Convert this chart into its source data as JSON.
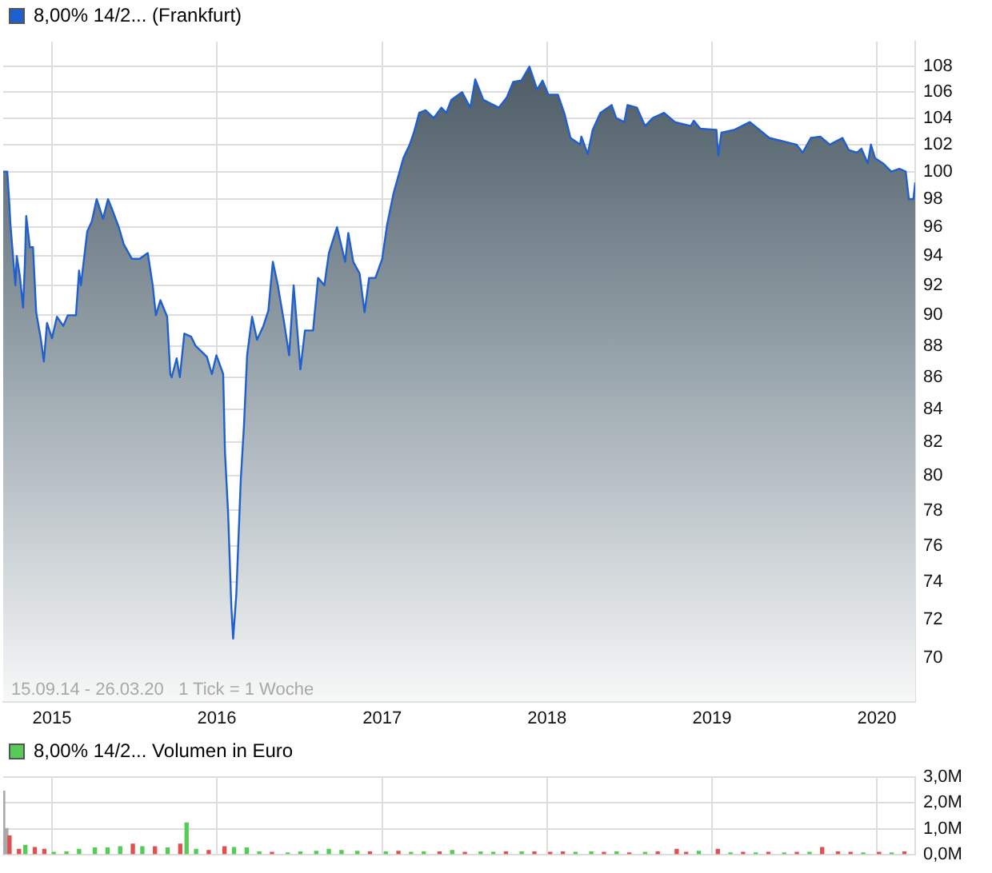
{
  "chart_data": [
    {
      "type": "area",
      "log": true,
      "grid": true,
      "legend": "top left",
      "xlim": [
        "2014-09-15",
        "2020-03-26"
      ],
      "xticks": [
        "2015",
        "2016",
        "2017",
        "2018",
        "2019",
        "2020"
      ],
      "ylim": [
        67.8,
        110
      ],
      "yticks": [
        70,
        72,
        74,
        76,
        78,
        80,
        82,
        84,
        86,
        88,
        90,
        92,
        94,
        96,
        98,
        100,
        102,
        104,
        106,
        108
      ],
      "annotations": [
        "15.09.14 - 26.03.20   1 Tick = 1 Woche"
      ],
      "x": [
        "2014-09-15",
        "2014-09-24",
        "2014-09-28",
        "2014-10-01",
        "2014-10-12",
        "2014-10-15",
        "2014-10-22",
        "2014-10-29",
        "2014-11-02",
        "2014-11-05",
        "2014-11-13",
        "2014-11-20",
        "2014-11-27",
        "2014-12-07",
        "2014-12-14",
        "2014-12-21",
        "2015-01-01",
        "2015-01-12",
        "2015-01-26",
        "2015-02-05",
        "2015-02-23",
        "2015-03-02",
        "2015-03-06",
        "2015-03-20",
        "2015-03-30",
        "2015-04-10",
        "2015-04-24",
        "2015-05-05",
        "2015-05-15",
        "2015-05-29",
        "2015-06-09",
        "2015-06-27",
        "2015-07-14",
        "2015-08-01",
        "2015-08-12",
        "2015-08-19",
        "2015-08-29",
        "2015-09-13",
        "2015-09-20",
        "2015-09-23",
        "2015-10-04",
        "2015-10-11",
        "2015-10-21",
        "2015-11-05",
        "2015-11-15",
        "2015-11-26",
        "2015-12-10",
        "2015-12-21",
        "2015-12-31",
        "2016-01-15",
        "2016-01-19",
        "2016-01-26",
        "2016-02-02",
        "2016-02-06",
        "2016-02-13",
        "2016-02-20",
        "2016-02-23",
        "2016-03-01",
        "2016-03-08",
        "2016-03-19",
        "2016-03-30",
        "2016-04-13",
        "2016-04-24",
        "2016-05-04",
        "2016-05-15",
        "2016-05-29",
        "2016-06-09",
        "2016-06-19",
        "2016-07-04",
        "2016-07-14",
        "2016-08-01",
        "2016-08-12",
        "2016-08-26",
        "2016-09-05",
        "2016-09-23",
        "2016-10-11",
        "2016-10-18",
        "2016-10-29",
        "2016-11-12",
        "2016-11-23",
        "2016-12-03",
        "2016-12-17",
        "2017-01-01",
        "2017-01-12",
        "2017-01-26",
        "2017-02-06",
        "2017-02-17",
        "2017-03-03",
        "2017-03-13",
        "2017-03-24",
        "2017-04-07",
        "2017-04-25",
        "2017-05-12",
        "2017-05-23",
        "2017-06-03",
        "2017-06-27",
        "2017-07-15",
        "2017-07-26",
        "2017-08-13",
        "2017-09-16",
        "2017-10-04",
        "2017-10-18",
        "2017-11-05",
        "2017-11-23",
        "2017-12-10",
        "2017-12-22",
        "2018-01-04",
        "2018-01-25",
        "2018-02-08",
        "2018-02-22",
        "2018-03-15",
        "2018-03-18",
        "2018-04-01",
        "2018-04-12",
        "2018-04-29",
        "2018-05-24",
        "2018-06-03",
        "2018-06-21",
        "2018-06-28",
        "2018-07-19",
        "2018-08-06",
        "2018-08-23",
        "2018-09-17",
        "2018-10-11",
        "2018-11-15",
        "2018-11-22",
        "2018-12-06",
        "2019-01-11",
        "2019-01-15",
        "2019-01-22",
        "2019-02-19",
        "2019-03-26",
        "2019-04-13",
        "2019-05-08",
        "2019-07-07",
        "2019-07-21",
        "2019-08-08",
        "2019-08-29",
        "2019-09-19",
        "2019-10-17",
        "2019-10-31",
        "2019-11-18",
        "2019-11-28",
        "2019-12-12",
        "2019-12-19",
        "2019-12-28",
        "2020-01-15",
        "2020-02-02",
        "2020-02-20",
        "2020-03-05",
        "2020-03-12",
        "2020-03-22",
        "2020-03-26"
      ],
      "series": [
        {
          "name": "8,00% 14/2... (Frankfurt)",
          "color": "#1f5fcf",
          "values": [
            100,
            100,
            98,
            96.2,
            92,
            94,
            92.6,
            90.5,
            93.5,
            96.8,
            94.6,
            94.6,
            90.2,
            88.5,
            87,
            89.5,
            88.5,
            89.9,
            89.3,
            90,
            90,
            93,
            92,
            95.7,
            96.4,
            98,
            96.6,
            98,
            97.2,
            96,
            94.8,
            93.8,
            93.8,
            94.2,
            92,
            90,
            91,
            89.9,
            86.2,
            86,
            87.2,
            86,
            88.8,
            88.6,
            88,
            87.7,
            87.3,
            86.2,
            87.4,
            86.2,
            81.4,
            77.8,
            72.7,
            71,
            73.3,
            77.8,
            79.8,
            83,
            87.4,
            89.9,
            88.4,
            89.3,
            90.3,
            93.6,
            92,
            89.5,
            87.4,
            92,
            86.5,
            89,
            89,
            92.5,
            92,
            94.2,
            96,
            93.6,
            95.6,
            93.6,
            92.8,
            90.2,
            92.5,
            92.5,
            93.8,
            96.2,
            98.4,
            99.7,
            101,
            102,
            103,
            104.4,
            104.6,
            104,
            104.8,
            104.4,
            105.4,
            106,
            104.8,
            107,
            105.4,
            104.8,
            105.6,
            106.8,
            106.9,
            108,
            106.2,
            106.9,
            105.8,
            105.8,
            104.4,
            102.5,
            102,
            102.6,
            101.3,
            103.1,
            104.4,
            105,
            104,
            103.7,
            105,
            104.8,
            103.4,
            104,
            104.4,
            103.7,
            103.4,
            103.8,
            103.2,
            103.1,
            101.2,
            102.9,
            103.1,
            103.7,
            103.2,
            102.5,
            102,
            101.4,
            102.5,
            102.6,
            102,
            102.5,
            101.6,
            101.4,
            101.7,
            100.6,
            102,
            101,
            100.6,
            100,
            100.2,
            100,
            98,
            98,
            99.2
          ]
        }
      ]
    },
    {
      "type": "bar",
      "grid": true,
      "legend": "top left",
      "tick_labels": "y",
      "xlim": [
        "2014-09-15",
        "2020-03-26"
      ],
      "xticks": [
        {
          "value": "2015",
          "label": null
        },
        {
          "value": "2016",
          "label": null
        },
        {
          "value": "2017",
          "label": null
        },
        {
          "value": "2018",
          "label": null
        },
        {
          "value": "2019",
          "label": null
        },
        {
          "value": "2020",
          "label": null
        }
      ],
      "ylim": [
        0,
        3
      ],
      "yticks": [
        {
          "value": 0,
          "label": "0,0M"
        },
        {
          "value": 1,
          "label": "1,0M"
        },
        {
          "value": 2,
          "label": "2,0M"
        },
        {
          "value": 3,
          "label": "3,0M"
        }
      ],
      "x": [
        "2014-09-15",
        "2014-09-22",
        "2014-09-29",
        "2014-10-20",
        "2014-11-03",
        "2014-11-24",
        "2014-12-15",
        "2015-01-05",
        "2015-02-02",
        "2015-03-02",
        "2015-04-06",
        "2015-05-04",
        "2015-06-01",
        "2015-06-29",
        "2015-07-20",
        "2015-08-17",
        "2015-09-14",
        "2015-10-12",
        "2015-10-26",
        "2015-11-16",
        "2015-12-14",
        "2016-01-18",
        "2016-02-08",
        "2016-03-07",
        "2016-04-04",
        "2016-05-02",
        "2016-06-06",
        "2016-07-04",
        "2016-08-08",
        "2016-09-05",
        "2016-10-03",
        "2016-11-07",
        "2016-12-05",
        "2017-01-09",
        "2017-02-06",
        "2017-03-06",
        "2017-04-03",
        "2017-05-08",
        "2017-06-05",
        "2017-07-03",
        "2017-08-07",
        "2017-09-04",
        "2017-10-02",
        "2017-11-06",
        "2017-12-04",
        "2018-01-08",
        "2018-02-05",
        "2018-03-05",
        "2018-04-09",
        "2018-05-07",
        "2018-06-04",
        "2018-07-02",
        "2018-08-06",
        "2018-09-03",
        "2018-10-15",
        "2018-11-05",
        "2018-12-03",
        "2019-01-14",
        "2019-02-11",
        "2019-03-11",
        "2019-04-08",
        "2019-05-06",
        "2019-06-10",
        "2019-07-08",
        "2019-08-05",
        "2019-09-02",
        "2019-10-07",
        "2019-11-04",
        "2019-12-02",
        "2020-01-06",
        "2020-02-03",
        "2020-03-02"
      ],
      "series": [
        {
          "name": "8,00% 14/2... Volumen in Euro",
          "color": "#55cc55",
          "values": [
            2.45,
            1.0,
            0.72,
            0.2,
            0.35,
            0.27,
            0.2,
            0.08,
            0.1,
            0.2,
            0.25,
            0.25,
            0.3,
            0.4,
            0.3,
            0.3,
            0.25,
            0.4,
            1.22,
            0.2,
            0.15,
            0.3,
            0.27,
            0.25,
            0.1,
            0.08,
            0.06,
            0.1,
            0.12,
            0.2,
            0.15,
            0.12,
            0.1,
            0.1,
            0.12,
            0.08,
            0.1,
            0.1,
            0.15,
            0.08,
            0.1,
            0.08,
            0.1,
            0.1,
            0.1,
            0.08,
            0.1,
            0.08,
            0.1,
            0.08,
            0.1,
            0.06,
            0.08,
            0.1,
            0.2,
            0.08,
            0.12,
            0.2,
            0.06,
            0.08,
            0.06,
            0.08,
            0.06,
            0.08,
            0.08,
            0.27,
            0.1,
            0.08,
            0.06,
            0.08,
            0.06,
            0.1
          ],
          "colors": [
            "#aaaaaa",
            "#aaaaaa",
            "#e05050",
            "#e05050",
            "#55cc55",
            "#e05050",
            "#e05050",
            "#55cc55",
            "#55cc55",
            "#55cc55",
            "#55cc55",
            "#55cc55",
            "#55cc55",
            "#e05050",
            "#55cc55",
            "#e05050",
            "#55cc55",
            "#e05050",
            "#55cc55",
            "#55cc55",
            "#e05050",
            "#e05050",
            "#55cc55",
            "#55cc55",
            "#55cc55",
            "#e05050",
            "#55cc55",
            "#55cc55",
            "#55cc55",
            "#55cc55",
            "#55cc55",
            "#55cc55",
            "#e05050",
            "#55cc55",
            "#e05050",
            "#55cc55",
            "#55cc55",
            "#e05050",
            "#55cc55",
            "#e05050",
            "#55cc55",
            "#55cc55",
            "#e05050",
            "#55cc55",
            "#e05050",
            "#e05050",
            "#e05050",
            "#55cc55",
            "#55cc55",
            "#e05050",
            "#55cc55",
            "#e05050",
            "#55cc55",
            "#e05050",
            "#e05050",
            "#e05050",
            "#55cc55",
            "#e05050",
            "#55cc55",
            "#e05050",
            "#55cc55",
            "#e05050",
            "#55cc55",
            "#e05050",
            "#55cc55",
            "#e05050",
            "#e05050",
            "#e05050",
            "#55cc55",
            "#e05050",
            "#55cc55",
            "#e05050"
          ]
        }
      ]
    }
  ]
}
